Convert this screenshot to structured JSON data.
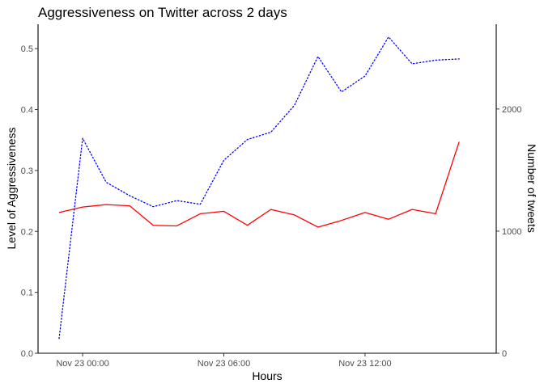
{
  "chart_data": {
    "type": "line",
    "title": "Aggressiveness on Twitter across 2 days",
    "xlabel": "Hours",
    "ylabel": "Level of Aggressiveness",
    "y2label": "Number of tweets",
    "x": [
      "Nov 22 23:00",
      "Nov 23 00:00",
      "Nov 23 01:00",
      "Nov 23 02:00",
      "Nov 23 03:00",
      "Nov 23 04:00",
      "Nov 23 05:00",
      "Nov 23 06:00",
      "Nov 23 07:00",
      "Nov 23 08:00",
      "Nov 23 09:00",
      "Nov 23 10:00",
      "Nov 23 11:00",
      "Nov 23 12:00",
      "Nov 23 13:00",
      "Nov 23 14:00",
      "Nov 23 15:00",
      "Nov 23 16:00"
    ],
    "x_ticks": [
      "Nov 23 00:00",
      "Nov 23 06:00",
      "Nov 23 12:00"
    ],
    "x_tick_index": [
      1,
      7,
      13
    ],
    "y_ticks": [
      "0.0",
      "0.1",
      "0.2",
      "0.3",
      "0.4",
      "0.5"
    ],
    "y_tick_values": [
      0,
      0.1,
      0.2,
      0.3,
      0.4,
      0.5
    ],
    "y2_ticks": [
      "0",
      "1000",
      "2000"
    ],
    "y2_tick_values": [
      0,
      1000,
      2000
    ],
    "ylim": [
      0,
      0.54
    ],
    "y2lim": [
      0,
      2694
    ],
    "grid": false,
    "series": [
      {
        "axis": "left",
        "color": "#ff0000",
        "style": "solid",
        "values": [
          0.231,
          0.24,
          0.244,
          0.242,
          0.21,
          0.209,
          0.229,
          0.233,
          0.21,
          0.236,
          0.227,
          0.207,
          0.218,
          0.231,
          0.22,
          0.236,
          0.229,
          0.347
        ]
      },
      {
        "axis": "right",
        "color": "#0000ff",
        "style": "dotted",
        "values": [
          120,
          1760,
          1400,
          1290,
          1200,
          1250,
          1220,
          1580,
          1750,
          1810,
          2030,
          2430,
          2140,
          2270,
          2590,
          2370,
          2400,
          2410
        ]
      }
    ]
  }
}
